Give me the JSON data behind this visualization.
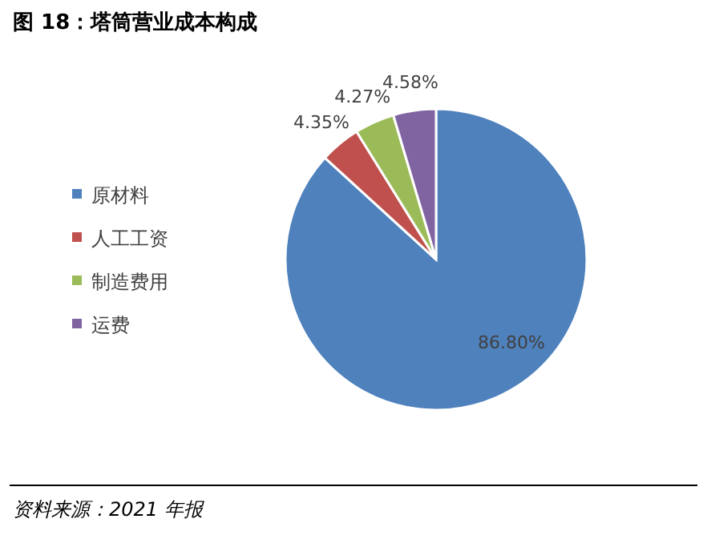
{
  "chart_data": {
    "type": "pie",
    "title": "图 18：塔筒营业成本构成",
    "categories": [
      "原材料",
      "人工工资",
      "制造费用",
      "运费"
    ],
    "values": [
      86.8,
      4.35,
      4.27,
      4.58
    ],
    "value_labels": [
      "86.80%",
      "4.35%",
      "4.27%",
      "4.58%"
    ],
    "colors": [
      "#4f81bd",
      "#c0504d",
      "#9bbb59",
      "#8064a2"
    ],
    "legend": "left",
    "annotations": [
      "资料来源：2021 年报"
    ]
  }
}
